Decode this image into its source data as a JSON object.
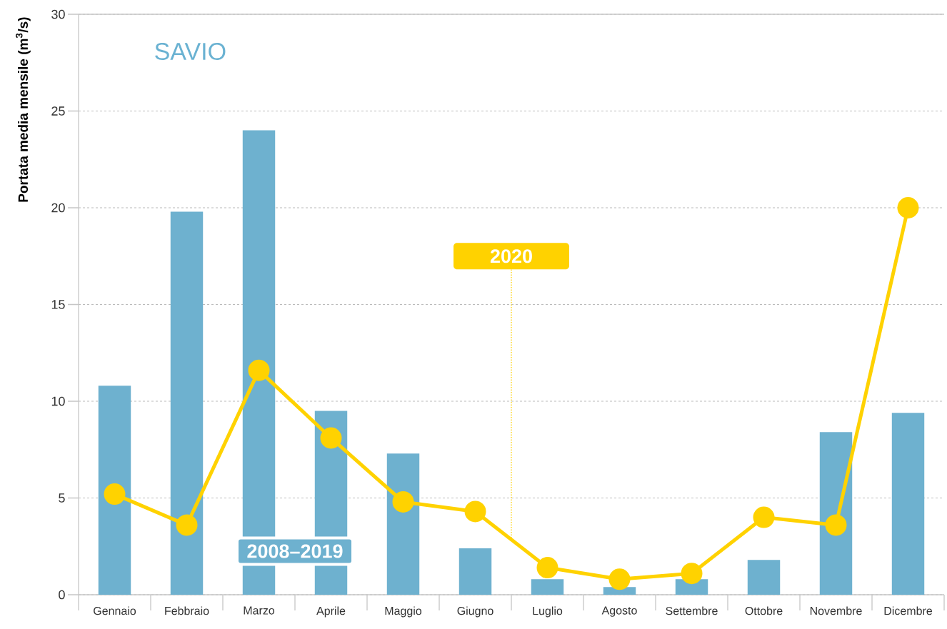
{
  "chart_data": {
    "type": "bar",
    "title": "SAVIO",
    "ylabel": "Portata media mensile (m$^{3}$/s)",
    "categories": [
      "Gennaio",
      "Febbraio",
      "Marzo",
      "Aprile",
      "Maggio",
      "Giugno",
      "Luglio",
      "Agosto",
      "Settembre",
      "Ottobre",
      "Novembre",
      "Dicembre"
    ],
    "series": [
      {
        "name": "2008–2019",
        "color": "#6eb1cf",
        "values": [
          10.8,
          19.8,
          24.0,
          9.5,
          7.3,
          2.4,
          0.8,
          0.4,
          0.8,
          1.8,
          8.4,
          9.4
        ]
      },
      {
        "name": "2020",
        "type": "line",
        "color": "#ffd200",
        "marker": "circle",
        "values": [
          5.2,
          3.6,
          11.6,
          8.1,
          4.8,
          4.3,
          1.4,
          0.8,
          1.1,
          4.0,
          3.6,
          20.0
        ]
      }
    ],
    "ylim": [
      0,
      30
    ],
    "yticks": [
      0,
      5,
      10,
      15,
      20,
      25,
      30
    ],
    "grid": "y"
  }
}
